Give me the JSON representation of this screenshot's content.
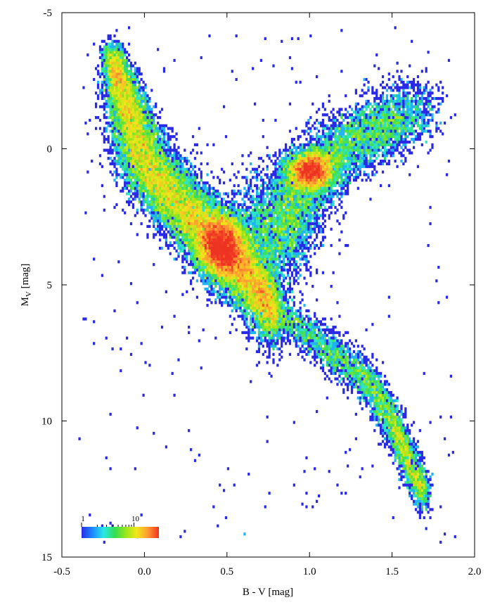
{
  "chart_data": {
    "type": "heatmap",
    "title": "",
    "xlabel": "B - V [mag]",
    "ylabel": {
      "main": "M",
      "sub": "V",
      "rest": " [mag]"
    },
    "xlim": [
      -0.5,
      2.0
    ],
    "ylim": [
      15,
      -5
    ],
    "y_inverted": true,
    "xticks": [
      -0.5,
      0.0,
      0.5,
      1.0,
      1.5,
      2.0
    ],
    "xtick_labels": [
      "-0.5",
      "0.0",
      "0.5",
      "1.0",
      "1.5",
      "2.0"
    ],
    "yticks": [
      -5,
      0,
      5,
      10,
      15
    ],
    "ytick_labels": [
      "-5",
      "0",
      "5",
      "10",
      "15"
    ],
    "grid": false,
    "colorbar": {
      "scale": "log",
      "range": [
        1,
        30
      ],
      "tick_values": [
        1,
        10
      ],
      "tick_labels": [
        "1",
        "10"
      ],
      "colors": [
        "#2a2ae6",
        "#1a8cff",
        "#2ae8e8",
        "#33dd55",
        "#99e61a",
        "#f2e61a",
        "#ff9933",
        "#ee3322"
      ],
      "placement": "bottom-left"
    },
    "density_features": [
      {
        "name": "main sequence upper",
        "points": [
          [
            -0.2,
            -3.5
          ],
          [
            -0.1,
            -1.5
          ],
          [
            0.0,
            0.5
          ],
          [
            0.2,
            2.0
          ],
          [
            0.4,
            3.3
          ],
          [
            0.6,
            4.6
          ],
          [
            0.8,
            6.0
          ]
        ]
      },
      {
        "name": "main sequence lower",
        "points": [
          [
            0.8,
            6.0
          ],
          [
            1.1,
            7.3
          ],
          [
            1.35,
            8.5
          ],
          [
            1.5,
            10.0
          ],
          [
            1.6,
            11.5
          ],
          [
            1.7,
            12.8
          ]
        ]
      },
      {
        "name": "red clump",
        "center": [
          1.0,
          0.8
        ]
      },
      {
        "name": "giant branch",
        "points": [
          [
            0.85,
            3.5
          ],
          [
            0.95,
            1.5
          ],
          [
            1.15,
            0.2
          ],
          [
            1.4,
            -0.7
          ],
          [
            1.65,
            -1.5
          ]
        ]
      },
      {
        "name": "peak density",
        "center": [
          0.47,
          3.6
        ],
        "level": 30
      }
    ]
  }
}
